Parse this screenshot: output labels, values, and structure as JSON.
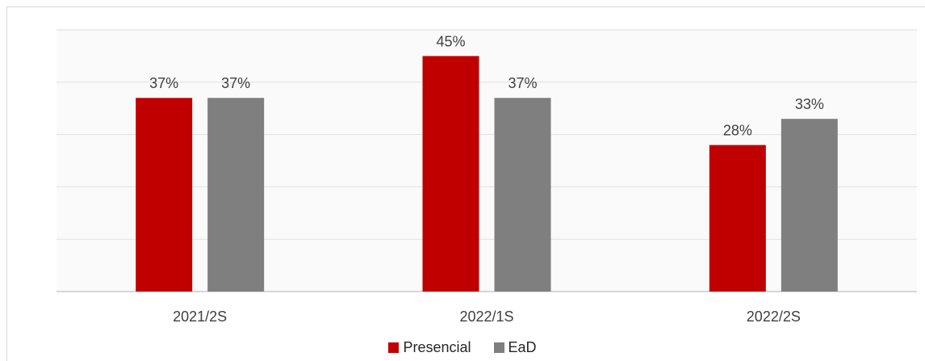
{
  "chart_data": {
    "type": "bar",
    "title": "",
    "xlabel": "",
    "ylabel": "",
    "categories": [
      "2021/2S",
      "2022/1S",
      "2022/2S"
    ],
    "series": [
      {
        "name": "Presencial",
        "values": [
          37,
          45,
          28
        ],
        "labels": [
          "37%",
          "45%",
          "28%"
        ],
        "color": "#c00000"
      },
      {
        "name": "EaD",
        "values": [
          37,
          37,
          33
        ],
        "labels": [
          "37%",
          "37%",
          "33%"
        ],
        "color": "#7f7f7f"
      }
    ],
    "ylim": [
      0,
      100
    ],
    "grid": true,
    "legend_position": "bottom"
  },
  "legend": {
    "items": [
      {
        "label": "Presencial",
        "color": "#c00000"
      },
      {
        "label": "EaD",
        "color": "#7f7f7f"
      }
    ]
  }
}
